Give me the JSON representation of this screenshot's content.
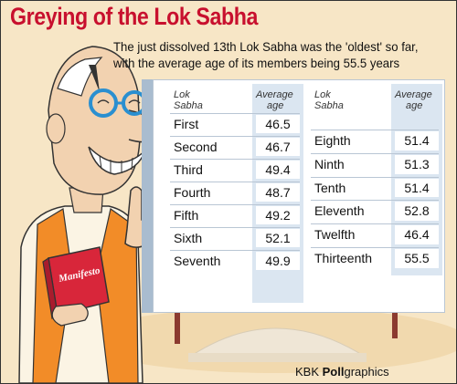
{
  "title": "Greying of the Lok Sabha",
  "subtitle": "The just dissolved 13th Lok Sabha was the 'oldest' so far, with the average age of its members being 55.5 years",
  "credit": {
    "prefix": "KBK ",
    "bold": "Poll",
    "suffix": "graphics"
  },
  "book_label": "Manifesto",
  "chart_data": {
    "type": "table",
    "columns": [
      {
        "name_header": [
          "Lok",
          "Sabha"
        ],
        "value_header": [
          "Average",
          "age"
        ]
      },
      {
        "name_header": [
          "Lok",
          "Sabha"
        ],
        "value_header": [
          "Average",
          "age"
        ]
      }
    ],
    "rows_left": [
      {
        "name": "First",
        "value": "46.5"
      },
      {
        "name": "Second",
        "value": "46.7"
      },
      {
        "name": "Third",
        "value": "49.4"
      },
      {
        "name": "Fourth",
        "value": "48.7"
      },
      {
        "name": "Fifth",
        "value": "49.2"
      },
      {
        "name": "Sixth",
        "value": "52.1"
      },
      {
        "name": "Seventh",
        "value": "49.9"
      }
    ],
    "rows_right": [
      {
        "name": "Eighth",
        "value": "51.4"
      },
      {
        "name": "Ninth",
        "value": "51.3"
      },
      {
        "name": "Tenth",
        "value": "51.4"
      },
      {
        "name": "Eleventh",
        "value": "52.8"
      },
      {
        "name": "Twelfth",
        "value": "46.4"
      },
      {
        "name": "Thirteenth",
        "value": "55.5"
      }
    ]
  },
  "colors": {
    "title": "#c8102e",
    "background": "#f7e6c6",
    "board": "#ffffff",
    "board_side": "#9fb3c9",
    "column_shade": "#dbe6f1",
    "kurta_vest": "#f28c28"
  }
}
